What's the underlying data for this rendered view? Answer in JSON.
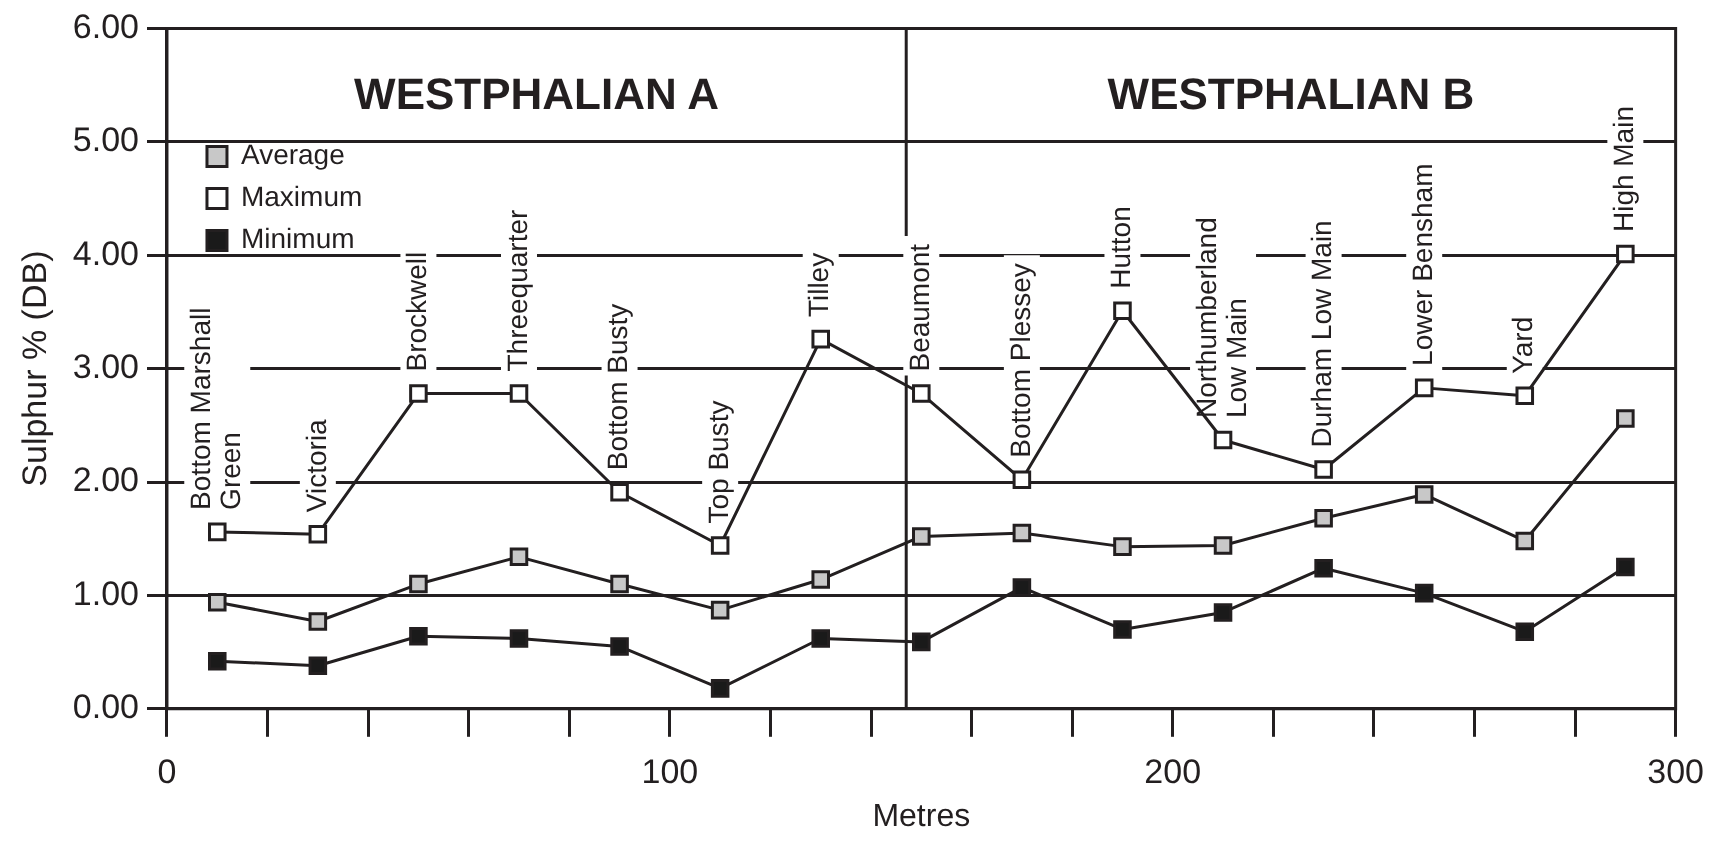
{
  "chart_data": {
    "type": "line",
    "xlabel": "Metres",
    "ylabel": "Sulphur % (DB)",
    "x": [
      10,
      30,
      50,
      70,
      90,
      110,
      130,
      150,
      170,
      190,
      210,
      230,
      250,
      270,
      290
    ],
    "series": [
      {
        "name": "Average",
        "color": "#c8c8c8",
        "values": [
          0.94,
          0.77,
          1.1,
          1.34,
          1.1,
          0.87,
          1.14,
          1.52,
          1.55,
          1.43,
          1.44,
          1.68,
          1.89,
          1.48,
          2.56
        ]
      },
      {
        "name": "Maximum",
        "color": "#ffffff",
        "values": [
          1.56,
          1.54,
          2.78,
          2.78,
          1.91,
          1.44,
          3.26,
          2.78,
          2.02,
          3.51,
          2.37,
          2.11,
          2.83,
          2.76,
          4.01
        ]
      },
      {
        "name": "Minimum",
        "color": "#1a1a1a",
        "values": [
          0.42,
          0.38,
          0.64,
          0.62,
          0.55,
          0.18,
          0.62,
          0.59,
          1.07,
          0.7,
          0.85,
          1.24,
          1.02,
          0.68,
          1.25
        ]
      }
    ],
    "xlim": [
      0,
      300
    ],
    "xticks": [
      0,
      {
        "value": 20,
        "label": null
      },
      {
        "value": 40,
        "label": null
      },
      {
        "value": 60,
        "label": null
      },
      {
        "value": 80,
        "label": null
      },
      100,
      {
        "value": 120,
        "label": null
      },
      {
        "value": 140,
        "label": null
      },
      {
        "value": 160,
        "label": null
      },
      {
        "value": 180,
        "label": null
      },
      200,
      {
        "value": 220,
        "label": null
      },
      {
        "value": 240,
        "label": null
      },
      {
        "value": 260,
        "label": null
      },
      {
        "value": 280,
        "label": null
      },
      300
    ],
    "ylim": [
      0,
      6
    ],
    "yticks": [
      {
        "value": 0,
        "label": "0.00"
      },
      {
        "value": 1,
        "label": "1.00"
      },
      {
        "value": 2,
        "label": "2.00"
      },
      {
        "value": 3,
        "label": "3.00"
      },
      {
        "value": 4,
        "label": "4.00"
      },
      {
        "value": 5,
        "label": "5.00"
      },
      {
        "value": 6,
        "label": "6.00"
      }
    ],
    "ref_lines": [
      {
        "axis": "x",
        "value": 147,
        "color": "#231f20"
      }
    ],
    "annotations": [
      "WESTPHALIAN A",
      "WESTPHALIAN B",
      {
        "text": "Bottom Marshall\nGreen",
        "x": 10,
        "y": 1.56
      },
      {
        "text": "Victoria",
        "x": 30,
        "y": 1.54
      },
      {
        "text": "Brockwell",
        "x": 50,
        "y": 2.78
      },
      {
        "text": "Threequarter",
        "x": 70,
        "y": 2.78
      },
      {
        "text": "Bottom Busty",
        "x": 90,
        "y": 1.91
      },
      {
        "text": "Top Busty",
        "x": 110,
        "y": 1.44
      },
      {
        "text": "Tilley",
        "x": 130,
        "y": 3.26
      },
      {
        "text": "Beaumont",
        "x": 150,
        "y": 2.78
      },
      {
        "text": "Bottom Plessey",
        "x": 170,
        "y": 2.02
      },
      {
        "text": "Hutton",
        "x": 190,
        "y": 3.51
      },
      {
        "text": "Northumberland\nLow Main",
        "x": 210,
        "y": 2.37
      },
      {
        "text": "Durham Low Main",
        "x": 230,
        "y": 2.11
      },
      {
        "text": "Lower Bensham",
        "x": 250,
        "y": 2.83
      },
      {
        "text": "Yard",
        "x": 270,
        "y": 2.76
      },
      {
        "text": "High Main",
        "x": 290,
        "y": 4.01
      }
    ],
    "grid": "y",
    "legend": "top left",
    "marker": "square",
    "line_style": "solid"
  }
}
